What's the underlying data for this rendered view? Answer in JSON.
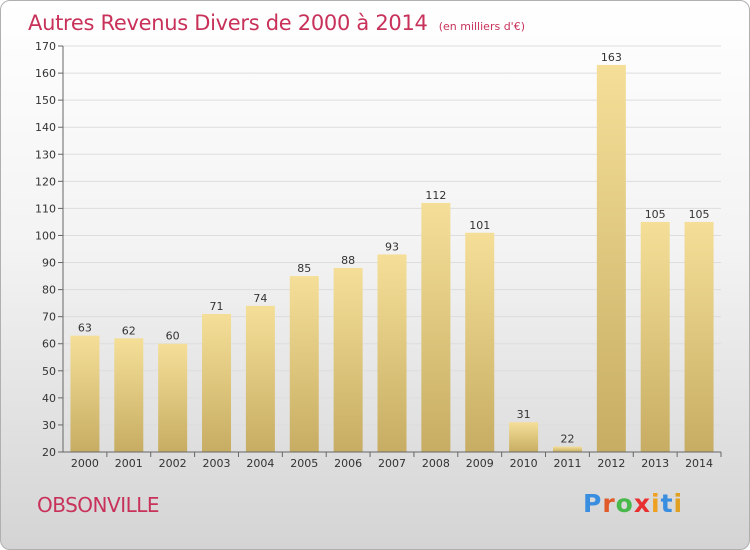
{
  "title": "Autres Revenus Divers de 2000 à 2014",
  "unit": "(en milliers d'€)",
  "commune": "OBSONVILLE",
  "logo": {
    "letters": [
      "P",
      "r",
      "o",
      "x",
      "i",
      "t",
      "i"
    ],
    "colors": [
      "#3a8ee0",
      "#e05a2a",
      "#48b84a",
      "#e83030",
      "#f0a020",
      "#3a8ee0",
      "#e0a020"
    ]
  },
  "colors": {
    "title": "#c8325a",
    "bar_top": "#f5df98",
    "bar_bottom": "#c7ad63",
    "grid": "#dddddd"
  },
  "chart_data": {
    "type": "bar",
    "title": "Autres Revenus Divers de 2000 à 2014",
    "subtitle": "(en milliers d'€)",
    "categories": [
      "2000",
      "2001",
      "2002",
      "2003",
      "2004",
      "2005",
      "2006",
      "2007",
      "2008",
      "2009",
      "2010",
      "2011",
      "2012",
      "2013",
      "2014"
    ],
    "values": [
      63,
      62,
      60,
      71,
      74,
      85,
      88,
      93,
      112,
      101,
      31,
      22,
      163,
      105,
      105
    ],
    "xlabel": "",
    "ylabel": "",
    "ylim": [
      20,
      170
    ],
    "yticks": [
      20,
      30,
      40,
      50,
      60,
      70,
      80,
      90,
      100,
      110,
      120,
      130,
      140,
      150,
      160,
      170
    ],
    "grid": true,
    "legend": "none"
  }
}
